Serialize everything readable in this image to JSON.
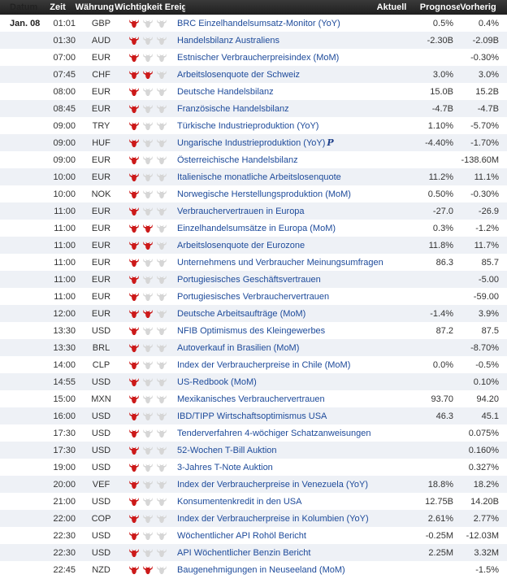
{
  "header": {
    "date": "Datum",
    "time": "Zeit",
    "currency": "Währung",
    "importance": "Wichtigkeit",
    "event": "Ereignis",
    "actual": "Aktuell",
    "forecast": "Prognose",
    "previous": "Vorherig"
  },
  "colors": {
    "bull_active": "#cc1a1a",
    "bull_inactive": "#d6d6d6",
    "event_link": "#1d4a9a"
  },
  "rows": [
    {
      "date": "Jan. 08",
      "time": "01:01",
      "currency": "GBP",
      "importance": 1,
      "event": "BRC Einzelhandelsumsatz-Monitor (YoY)",
      "actual": "",
      "forecast": "0.5%",
      "previous": "0.4%"
    },
    {
      "date": "",
      "time": "01:30",
      "currency": "AUD",
      "importance": 1,
      "event": "Handelsbilanz Australiens",
      "actual": "",
      "forecast": "-2.30B",
      "previous": "-2.09B"
    },
    {
      "date": "",
      "time": "07:00",
      "currency": "EUR",
      "importance": 1,
      "event": "Estnischer Verbraucherpreisindex (MoM)",
      "actual": "",
      "forecast": "",
      "previous": "-0.30%"
    },
    {
      "date": "",
      "time": "07:45",
      "currency": "CHF",
      "importance": 2,
      "event": "Arbeitslosenquote der Schweiz",
      "actual": "",
      "forecast": "3.0%",
      "previous": "3.0%"
    },
    {
      "date": "",
      "time": "08:00",
      "currency": "EUR",
      "importance": 1,
      "event": "Deutsche Handelsbilanz",
      "actual": "",
      "forecast": "15.0B",
      "previous": "15.2B"
    },
    {
      "date": "",
      "time": "08:45",
      "currency": "EUR",
      "importance": 1,
      "event": "Französische Handelsbilanz",
      "actual": "",
      "forecast": "-4.7B",
      "previous": "-4.7B"
    },
    {
      "date": "",
      "time": "09:00",
      "currency": "TRY",
      "importance": 1,
      "event": "Türkische Industrieproduktion (YoY)",
      "actual": "",
      "forecast": "1.10%",
      "previous": "-5.70%"
    },
    {
      "date": "",
      "time": "09:00",
      "currency": "HUF",
      "importance": 1,
      "event": "Ungarische Industrieproduktion (YoY)",
      "flag": "P",
      "actual": "",
      "forecast": "-4.40%",
      "previous": "-1.70%"
    },
    {
      "date": "",
      "time": "09:00",
      "currency": "EUR",
      "importance": 1,
      "event": "Österreichische Handelsbilanz",
      "actual": "",
      "forecast": "",
      "previous": "-138.60M"
    },
    {
      "date": "",
      "time": "10:00",
      "currency": "EUR",
      "importance": 1,
      "event": "Italienische monatliche Arbeitslosenquote",
      "actual": "",
      "forecast": "11.2%",
      "previous": "11.1%"
    },
    {
      "date": "",
      "time": "10:00",
      "currency": "NOK",
      "importance": 1,
      "event": "Norwegische Herstellungsproduktion (MoM)",
      "actual": "",
      "forecast": "0.50%",
      "previous": "-0.30%"
    },
    {
      "date": "",
      "time": "11:00",
      "currency": "EUR",
      "importance": 1,
      "event": "Verbrauchervertrauen in Europa",
      "actual": "",
      "forecast": "-27.0",
      "previous": "-26.9"
    },
    {
      "date": "",
      "time": "11:00",
      "currency": "EUR",
      "importance": 2,
      "event": "Einzelhandelsumsätze in Europa (MoM)",
      "actual": "",
      "forecast": "0.3%",
      "previous": "-1.2%"
    },
    {
      "date": "",
      "time": "11:00",
      "currency": "EUR",
      "importance": 2,
      "event": "Arbeitslosenquote der Eurozone",
      "actual": "",
      "forecast": "11.8%",
      "previous": "11.7%"
    },
    {
      "date": "",
      "time": "11:00",
      "currency": "EUR",
      "importance": 1,
      "event": "Unternehmens und Verbraucher Meinungsumfragen",
      "actual": "",
      "forecast": "86.3",
      "previous": "85.7"
    },
    {
      "date": "",
      "time": "11:00",
      "currency": "EUR",
      "importance": 1,
      "event": "Portugiesisches Geschäftsvertrauen",
      "actual": "",
      "forecast": "",
      "previous": "-5.00"
    },
    {
      "date": "",
      "time": "11:00",
      "currency": "EUR",
      "importance": 1,
      "event": "Portugiesisches Verbrauchervertrauen",
      "actual": "",
      "forecast": "",
      "previous": "-59.00"
    },
    {
      "date": "",
      "time": "12:00",
      "currency": "EUR",
      "importance": 2,
      "event": "Deutsche Arbeitsaufträge (MoM)",
      "actual": "",
      "forecast": "-1.4%",
      "previous": "3.9%"
    },
    {
      "date": "",
      "time": "13:30",
      "currency": "USD",
      "importance": 1,
      "event": "NFIB Optimismus des Kleingewerbes",
      "actual": "",
      "forecast": "87.2",
      "previous": "87.5"
    },
    {
      "date": "",
      "time": "13:30",
      "currency": "BRL",
      "importance": 1,
      "event": "Autoverkauf in Brasilien (MoM)",
      "actual": "",
      "forecast": "",
      "previous": "-8.70%"
    },
    {
      "date": "",
      "time": "14:00",
      "currency": "CLP",
      "importance": 1,
      "event": "Index der Verbraucherpreise in Chile (MoM)",
      "actual": "",
      "forecast": "0.0%",
      "previous": "-0.5%"
    },
    {
      "date": "",
      "time": "14:55",
      "currency": "USD",
      "importance": 1,
      "event": "US-Redbook (MoM)",
      "actual": "",
      "forecast": "",
      "previous": "0.10%"
    },
    {
      "date": "",
      "time": "15:00",
      "currency": "MXN",
      "importance": 1,
      "event": "Mexikanisches Verbrauchervertrauen",
      "actual": "",
      "forecast": "93.70",
      "previous": "94.20"
    },
    {
      "date": "",
      "time": "16:00",
      "currency": "USD",
      "importance": 1,
      "event": "IBD/TIPP Wirtschaftsoptimismus USA",
      "actual": "",
      "forecast": "46.3",
      "previous": "45.1"
    },
    {
      "date": "",
      "time": "17:30",
      "currency": "USD",
      "importance": 1,
      "event": "Tenderverfahren 4-wöchiger Schatzanweisungen",
      "actual": "",
      "forecast": "",
      "previous": "0.075%"
    },
    {
      "date": "",
      "time": "17:30",
      "currency": "USD",
      "importance": 1,
      "event": "52-Wochen T-Bill Auktion",
      "actual": "",
      "forecast": "",
      "previous": "0.160%"
    },
    {
      "date": "",
      "time": "19:00",
      "currency": "USD",
      "importance": 1,
      "event": "3-Jahres T-Note Auktion",
      "actual": "",
      "forecast": "",
      "previous": "0.327%"
    },
    {
      "date": "",
      "time": "20:00",
      "currency": "VEF",
      "importance": 1,
      "event": "Index der Verbraucherpreise in Venezuela (YoY)",
      "actual": "",
      "forecast": "18.8%",
      "previous": "18.2%"
    },
    {
      "date": "",
      "time": "21:00",
      "currency": "USD",
      "importance": 1,
      "event": "Konsumentenkredit in den USA",
      "actual": "",
      "forecast": "12.75B",
      "previous": "14.20B"
    },
    {
      "date": "",
      "time": "22:00",
      "currency": "COP",
      "importance": 1,
      "event": "Index der Verbraucherpreise in Kolumbien (YoY)",
      "actual": "",
      "forecast": "2.61%",
      "previous": "2.77%"
    },
    {
      "date": "",
      "time": "22:30",
      "currency": "USD",
      "importance": 1,
      "event": "Wöchentlicher API Rohöl Bericht",
      "actual": "",
      "forecast": "-0.25M",
      "previous": "-12.03M"
    },
    {
      "date": "",
      "time": "22:30",
      "currency": "USD",
      "importance": 1,
      "event": "API Wöchentlicher Benzin Bericht",
      "actual": "",
      "forecast": "2.25M",
      "previous": "3.32M"
    },
    {
      "date": "",
      "time": "22:45",
      "currency": "NZD",
      "importance": 2,
      "event": "Baugenehmigungen in Neuseeland (MoM)",
      "actual": "",
      "forecast": "",
      "previous": "-1.5%"
    }
  ]
}
